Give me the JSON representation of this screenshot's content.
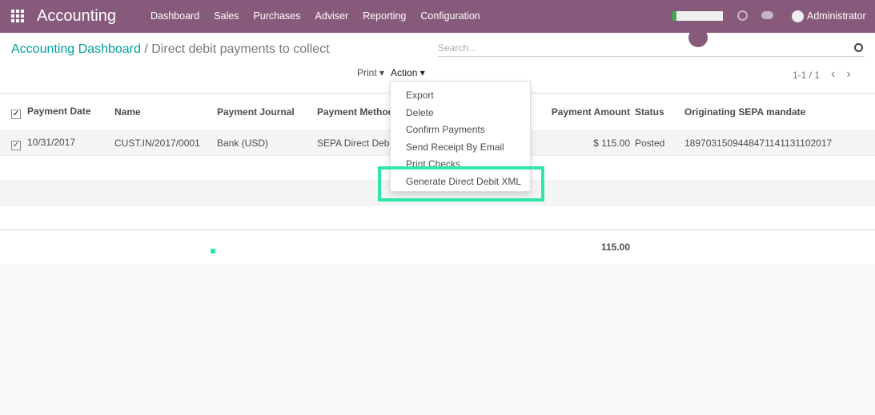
{
  "nav": {
    "brand": "Accounting",
    "menu": [
      "Dashboard",
      "Sales",
      "Purchases",
      "Adviser",
      "Reporting",
      "Configuration"
    ],
    "user": "Administrator"
  },
  "breadcrumb": {
    "parent": "Accounting Dashboard",
    "separator": "/",
    "current": "Direct debit payments to collect"
  },
  "search": {
    "placeholder": "Search..."
  },
  "toolbar": {
    "print": "Print ▾",
    "action": "Action ▾",
    "pager": "1-1 / 1",
    "prev": "‹",
    "next": "›"
  },
  "table": {
    "headers": [
      "Payment Date",
      "Name",
      "Payment Journal",
      "Payment Method",
      "Payment Amount",
      "Status",
      "Originating SEPA mandate"
    ],
    "rows": [
      {
        "date": "10/31/2017",
        "name": "CUST.IN/2017/0001",
        "journal": "Bank (USD)",
        "method": "SEPA Direct Debit",
        "amount": "$ 115.00",
        "status": "Posted",
        "mandate": "1897031509448471141131102017"
      }
    ],
    "total": "115.00"
  },
  "action_menu": [
    "Export",
    "Delete",
    "Confirm Payments",
    "Send Receipt By Email",
    "Print Checks",
    "Generate Direct Debit XML"
  ],
  "colors": {
    "brand": "#875a7b",
    "highlight": "#2ee6a8",
    "link": "#00a09d"
  }
}
